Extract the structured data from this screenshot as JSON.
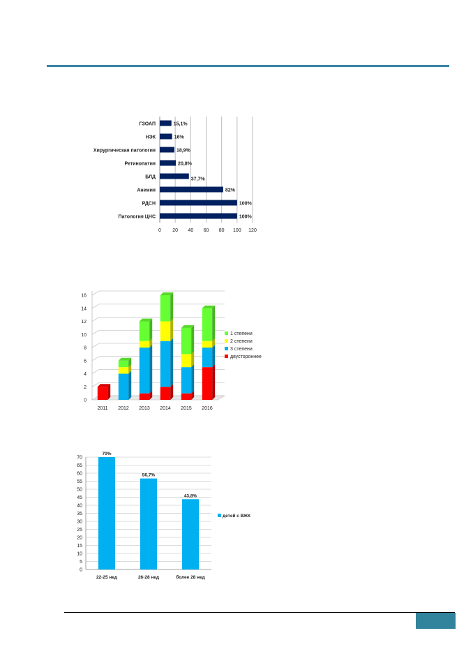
{
  "page": {
    "accent_color": "#3a86a6",
    "page_box_color": "#31849b"
  },
  "chart_data": [
    {
      "type": "bar",
      "orientation": "horizontal",
      "categories": [
        "ГЗОАП",
        "НЭК",
        "Хирургическая патология",
        "Ретинопатия",
        "БЛД",
        "Анемия",
        "РДСН",
        "Патология ЦНС"
      ],
      "values": [
        15.1,
        16,
        18.9,
        20.8,
        37.7,
        82,
        100,
        100
      ],
      "data_labels": [
        "15,1%",
        "16%",
        "18,9%",
        "20,8%",
        "37,7%",
        "82%",
        "100%",
        "100%"
      ],
      "xlim": [
        0,
        120
      ],
      "xticks": [
        "0",
        "20",
        "40",
        "60",
        "80",
        "100",
        "120"
      ],
      "bar_color": "#002060",
      "grid": true
    },
    {
      "type": "bar",
      "stacked": true,
      "style": "3d",
      "categories": [
        "2011",
        "2012",
        "2013",
        "2014",
        "2015",
        "2016"
      ],
      "series": [
        {
          "name": "двустороннее",
          "color": "#ff0000",
          "values": [
            2,
            0,
            1,
            2,
            1,
            5
          ]
        },
        {
          "name": "3 степени",
          "color": "#00b0f0",
          "values": [
            0,
            4,
            7,
            7,
            4,
            3
          ]
        },
        {
          "name": "2 степени",
          "color": "#ffff00",
          "values": [
            0,
            1,
            1,
            3,
            2,
            1
          ]
        },
        {
          "name": "1 степени",
          "color": "#66ff33",
          "values": [
            0,
            1,
            3,
            4,
            4,
            5
          ]
        }
      ],
      "legend_order": [
        "1 степени",
        "2 степени",
        "3 степени",
        "двустороннее"
      ],
      "ylim": [
        0,
        16
      ],
      "yticks": [
        "0",
        "2",
        "4",
        "6",
        "8",
        "10",
        "12",
        "14",
        "16"
      ],
      "legend_position": "right",
      "grid": true
    },
    {
      "type": "bar",
      "categories": [
        "22-25 нед",
        "26-28 нед",
        "более 28 нед"
      ],
      "series": [
        {
          "name": "детей с ВЖК",
          "color": "#00b0f0",
          "values": [
            70,
            56.7,
            43.8
          ]
        }
      ],
      "data_labels": [
        "70%",
        "56,7%",
        "43,8%"
      ],
      "ylim": [
        0,
        70
      ],
      "yticks": [
        "0",
        "5",
        "10",
        "15",
        "20",
        "25",
        "30",
        "35",
        "40",
        "45",
        "50",
        "55",
        "60",
        "65",
        "70"
      ],
      "legend_position": "right",
      "grid": true
    }
  ]
}
